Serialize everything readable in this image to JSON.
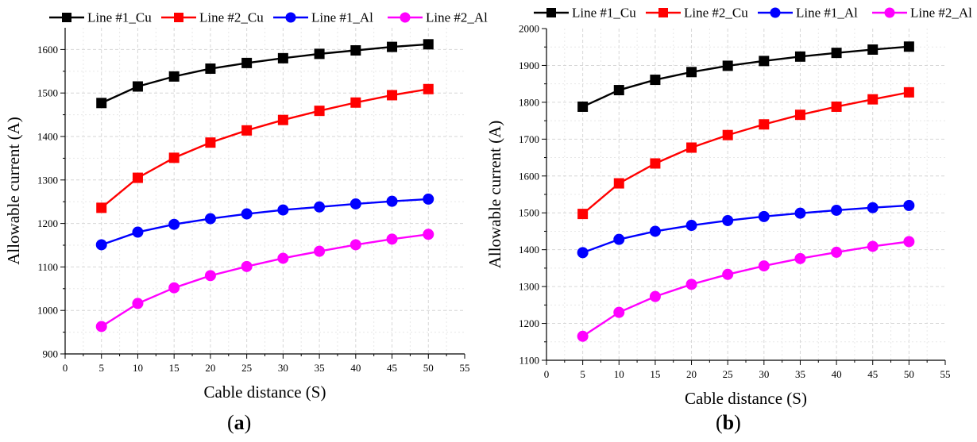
{
  "chart_data": [
    {
      "type": "line",
      "panel_label": "a",
      "xlabel": "Cable distance (S)",
      "ylabel": "Allowable current (A)",
      "xlim": [
        0,
        55
      ],
      "ylim": [
        900,
        1650
      ],
      "xticks": [
        0,
        5,
        10,
        15,
        20,
        25,
        30,
        35,
        40,
        45,
        50,
        55
      ],
      "yticks": [
        900,
        1000,
        1100,
        1200,
        1300,
        1400,
        1500,
        1600
      ],
      "grid": true,
      "legend_position": "top",
      "x": [
        5,
        10,
        15,
        20,
        25,
        30,
        35,
        40,
        45,
        50
      ],
      "series": [
        {
          "name": "Line #1_Cu",
          "color": "#000000",
          "marker": "square",
          "values": [
            1477,
            1515,
            1538,
            1556,
            1569,
            1580,
            1590,
            1598,
            1606,
            1612
          ]
        },
        {
          "name": "Line #2_Cu",
          "color": "#ff0000",
          "marker": "square",
          "values": [
            1236,
            1305,
            1351,
            1386,
            1414,
            1438,
            1459,
            1478,
            1495,
            1509
          ]
        },
        {
          "name": "Line #1_Al",
          "color": "#0000ff",
          "marker": "circle",
          "values": [
            1151,
            1180,
            1198,
            1211,
            1222,
            1231,
            1238,
            1245,
            1251,
            1256
          ]
        },
        {
          "name": "Line #2_Al",
          "color": "#ff00ff",
          "marker": "circle",
          "values": [
            963,
            1016,
            1052,
            1080,
            1101,
            1120,
            1136,
            1151,
            1164,
            1175
          ]
        }
      ]
    },
    {
      "type": "line",
      "panel_label": "b",
      "xlabel": "Cable distance (S)",
      "ylabel": "Allowable current (A)",
      "xlim": [
        0,
        55
      ],
      "ylim": [
        1100,
        2000
      ],
      "xticks": [
        0,
        5,
        10,
        15,
        20,
        25,
        30,
        35,
        40,
        45,
        50,
        55
      ],
      "yticks": [
        1100,
        1200,
        1300,
        1400,
        1500,
        1600,
        1700,
        1800,
        1900,
        2000
      ],
      "grid": true,
      "legend_position": "top",
      "x": [
        5,
        10,
        15,
        20,
        25,
        30,
        35,
        40,
        45,
        50
      ],
      "series": [
        {
          "name": "Line #1_Cu",
          "color": "#000000",
          "marker": "square",
          "values": [
            1788,
            1833,
            1861,
            1882,
            1899,
            1912,
            1924,
            1934,
            1943,
            1951
          ]
        },
        {
          "name": "Line #2_Cu",
          "color": "#ff0000",
          "marker": "square",
          "values": [
            1497,
            1580,
            1634,
            1677,
            1711,
            1740,
            1766,
            1788,
            1808,
            1827
          ]
        },
        {
          "name": "Line #1_Al",
          "color": "#0000ff",
          "marker": "circle",
          "values": [
            1392,
            1428,
            1450,
            1466,
            1479,
            1490,
            1499,
            1507,
            1514,
            1520
          ]
        },
        {
          "name": "Line #2_Al",
          "color": "#ff00ff",
          "marker": "circle",
          "values": [
            1165,
            1230,
            1273,
            1306,
            1333,
            1356,
            1376,
            1393,
            1409,
            1422
          ]
        }
      ]
    }
  ]
}
